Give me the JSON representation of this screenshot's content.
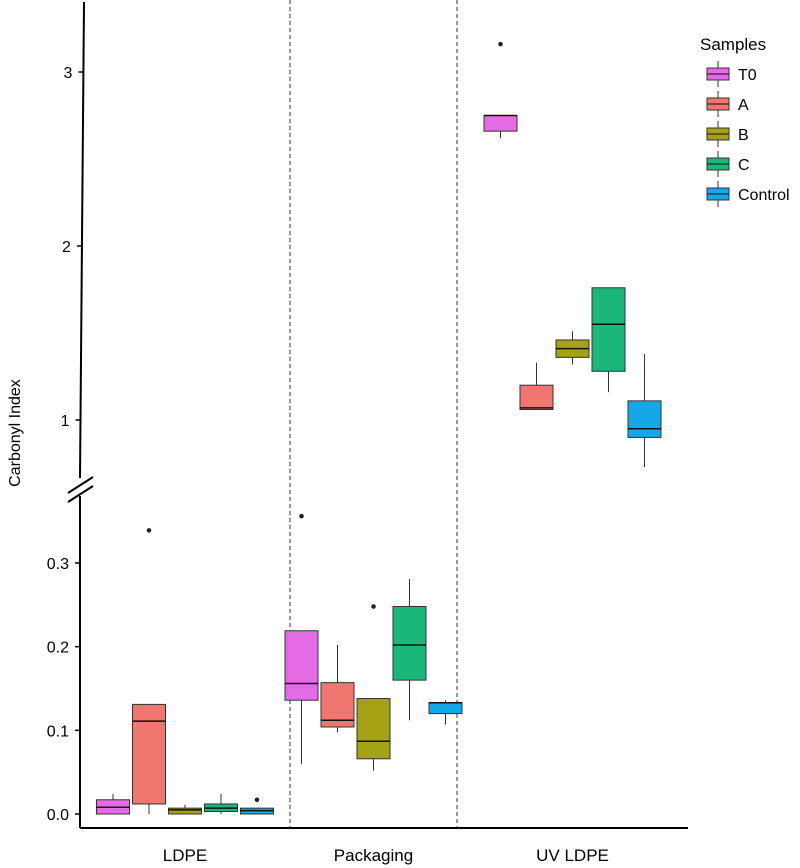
{
  "chart_data": {
    "type": "boxplot",
    "title": "",
    "ylabel": "Carbonyl Index",
    "xlabel": "",
    "categories": [
      "LDPE",
      "Packaging",
      "UV LDPE"
    ],
    "axis_break": {
      "lower_range": [
        0,
        0.36
      ],
      "upper_range": [
        0.75,
        3.28
      ],
      "lower_ticks": [
        "0.0",
        "0.1",
        "0.2",
        "0.3"
      ],
      "lower_tick_values": [
        0,
        0.1,
        0.2,
        0.3
      ],
      "upper_ticks": [
        "1",
        "2",
        "3"
      ],
      "upper_tick_values": [
        1,
        2,
        3
      ]
    },
    "legend": {
      "title": "Samples",
      "entries": [
        "T0",
        "A",
        "B",
        "C",
        "Control"
      ],
      "placement": "top-right"
    },
    "colors": {
      "T0": "#e56be6",
      "A": "#f0776f",
      "B": "#a6a215",
      "C": "#19b77a",
      "Control": "#14a8e8"
    },
    "groups": [
      {
        "category": "LDPE",
        "boxes": [
          {
            "sample": "T0",
            "min": 0.0,
            "q1": 0.0,
            "median": 0.008,
            "q3": 0.017,
            "max": 0.024,
            "outliers": []
          },
          {
            "sample": "A",
            "min": 0.0,
            "q1": 0.012,
            "median": 0.111,
            "q3": 0.131,
            "max": 0.131,
            "outliers": [
              0.339
            ]
          },
          {
            "sample": "B",
            "min": 0.0,
            "q1": 0.0,
            "median": 0.005,
            "q3": 0.007,
            "max": 0.011,
            "outliers": []
          },
          {
            "sample": "C",
            "min": 0.0,
            "q1": 0.003,
            "median": 0.007,
            "q3": 0.012,
            "max": 0.024,
            "outliers": []
          },
          {
            "sample": "Control",
            "min": 0.0,
            "q1": 0.0,
            "median": 0.004,
            "q3": 0.007,
            "max": 0.007,
            "outliers": [
              0.017
            ]
          }
        ]
      },
      {
        "category": "Packaging",
        "boxes": [
          {
            "sample": "T0",
            "min": 0.06,
            "q1": 0.136,
            "median": 0.156,
            "q3": 0.219,
            "max": 0.219,
            "outliers": [
              0.356
            ]
          },
          {
            "sample": "A",
            "min": 0.098,
            "q1": 0.104,
            "median": 0.112,
            "q3": 0.157,
            "max": 0.202,
            "outliers": []
          },
          {
            "sample": "B",
            "min": 0.052,
            "q1": 0.066,
            "median": 0.087,
            "q3": 0.138,
            "max": 0.138,
            "outliers": [
              0.248
            ]
          },
          {
            "sample": "C",
            "min": 0.112,
            "q1": 0.16,
            "median": 0.202,
            "q3": 0.248,
            "max": 0.281,
            "outliers": []
          },
          {
            "sample": "Control",
            "min": 0.107,
            "q1": 0.12,
            "median": 0.133,
            "q3": 0.133,
            "max": 0.136,
            "outliers": []
          }
        ]
      },
      {
        "category": "UV LDPE",
        "boxes": [
          {
            "sample": "T0",
            "min": 2.62,
            "q1": 2.66,
            "median": 2.75,
            "q3": 2.75,
            "max": 2.75,
            "outliers": [
              3.16
            ]
          },
          {
            "sample": "A",
            "min": 1.06,
            "q1": 1.06,
            "median": 1.07,
            "q3": 1.2,
            "max": 1.33,
            "outliers": []
          },
          {
            "sample": "B",
            "min": 1.32,
            "q1": 1.36,
            "median": 1.41,
            "q3": 1.46,
            "max": 1.51,
            "outliers": []
          },
          {
            "sample": "C",
            "min": 1.16,
            "q1": 1.28,
            "median": 1.55,
            "q3": 1.76,
            "max": 1.76,
            "outliers": []
          },
          {
            "sample": "Control",
            "min": 0.73,
            "q1": 0.9,
            "median": 0.95,
            "q3": 1.11,
            "max": 1.38,
            "outliers": []
          }
        ]
      }
    ]
  }
}
